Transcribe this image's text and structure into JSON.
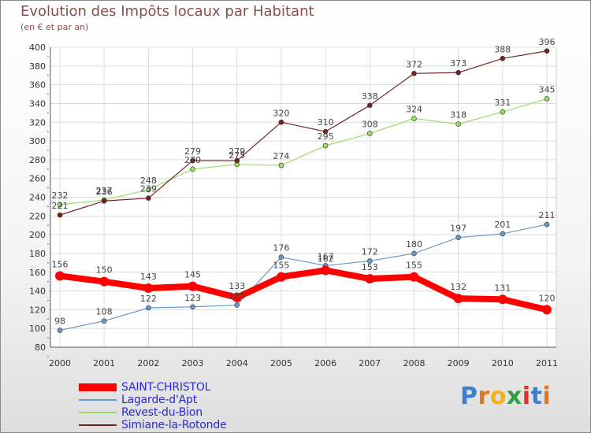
{
  "title": "Evolution des Impôts locaux par Habitant",
  "subtitle": "(en € et par an)",
  "colors": {
    "title": "#8a4d4d",
    "legend_text": "#2a2ad6",
    "axis": "#555555",
    "grid": "#dcdcdc"
  },
  "chart_data": {
    "type": "line",
    "title": "Evolution des Impôts locaux par Habitant",
    "subtitle": "(en € et par an)",
    "x": [
      2000,
      2001,
      2002,
      2003,
      2004,
      2005,
      2006,
      2007,
      2008,
      2009,
      2010,
      2011
    ],
    "xlabel": "",
    "ylabel": "",
    "ylim": [
      80,
      400
    ],
    "yticks": [
      80,
      100,
      120,
      140,
      160,
      180,
      200,
      220,
      240,
      260,
      280,
      300,
      320,
      340,
      360,
      380,
      400
    ],
    "grid": true,
    "legend_position": "bottom-left",
    "series": [
      {
        "name": "SAINT-CHRISTOL",
        "color": "#ff0000",
        "emphasis": true,
        "values": [
          156,
          150,
          143,
          145,
          133,
          155,
          162,
          153,
          155,
          132,
          131,
          120
        ]
      },
      {
        "name": "Lagarde-d'Apt",
        "color": "#6699cc",
        "values": [
          98,
          108,
          122,
          123,
          125,
          176,
          167,
          172,
          180,
          197,
          201,
          211
        ]
      },
      {
        "name": "Revest-du-Bion",
        "color": "#99dd66",
        "values": [
          232,
          237,
          248,
          270,
          275,
          274,
          295,
          308,
          324,
          318,
          331,
          345
        ]
      },
      {
        "name": "Simiane-la-Rotonde",
        "color": "#772222",
        "values": [
          221,
          236,
          239,
          279,
          279,
          320,
          310,
          338,
          372,
          373,
          388,
          396
        ]
      }
    ]
  },
  "logo": {
    "letters": [
      "P",
      "r",
      "o",
      "x",
      "i",
      "t",
      "i"
    ],
    "colors": [
      "#3b7fd1",
      "#e8731c",
      "#f2b21a",
      "#2f9e44",
      "#e0312b",
      "#3b7fd1",
      "#e8731c"
    ]
  }
}
